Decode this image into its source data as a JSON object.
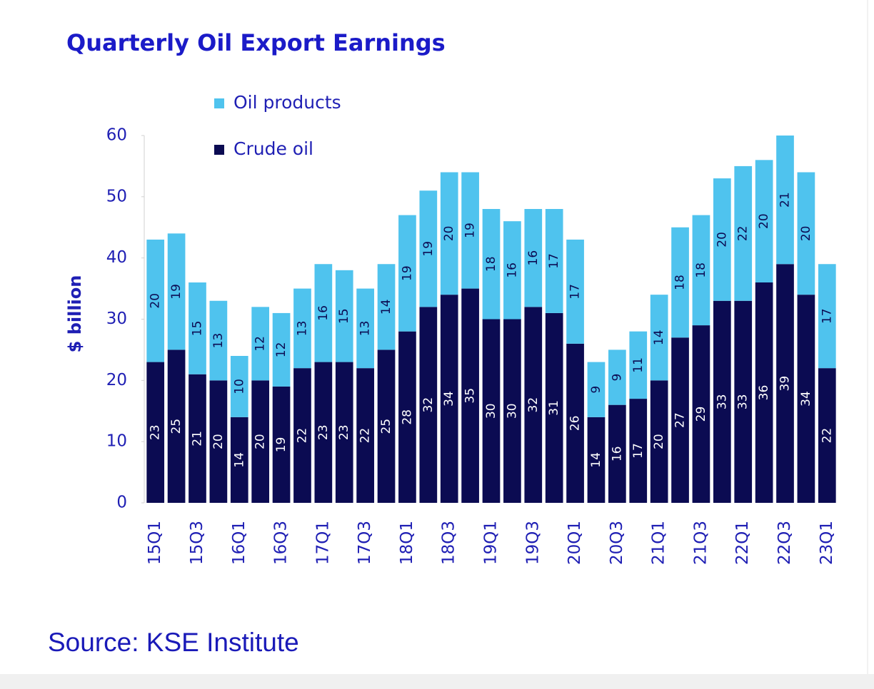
{
  "chart_data": {
    "type": "stacked-bar",
    "title": "Quarterly Oil Export Earnings",
    "ylabel": "$ billion",
    "source": "Source: KSE Institute",
    "categories": [
      "15Q1",
      null,
      "15Q3",
      null,
      "16Q1",
      null,
      "16Q3",
      null,
      "17Q1",
      null,
      "17Q3",
      null,
      "18Q1",
      null,
      "18Q3",
      null,
      "19Q1",
      null,
      "19Q3",
      null,
      "20Q1",
      null,
      "20Q3",
      null,
      "21Q1",
      null,
      "21Q3",
      null,
      "22Q1",
      null,
      "22Q3",
      null,
      "23Q1"
    ],
    "series": [
      {
        "name": "Crude oil",
        "color": "#0b0b52",
        "values": [
          23,
          25,
          21,
          20,
          14,
          20,
          19,
          22,
          23,
          23,
          22,
          25,
          28,
          32,
          34,
          35,
          30,
          30,
          32,
          31,
          26,
          14,
          16,
          17,
          20,
          27,
          29,
          33,
          33,
          36,
          39,
          34,
          22
        ]
      },
      {
        "name": "Oil products",
        "color": "#4fc3ee",
        "values": [
          20,
          19,
          15,
          13,
          10,
          12,
          12,
          13,
          16,
          15,
          13,
          14,
          19,
          19,
          20,
          19,
          18,
          16,
          16,
          17,
          17,
          9,
          9,
          11,
          14,
          18,
          18,
          20,
          22,
          20,
          21,
          20,
          17
        ]
      }
    ],
    "ylim": [
      0,
      60
    ],
    "yticks": [
      0,
      10,
      20,
      30,
      40,
      50,
      60
    ]
  }
}
